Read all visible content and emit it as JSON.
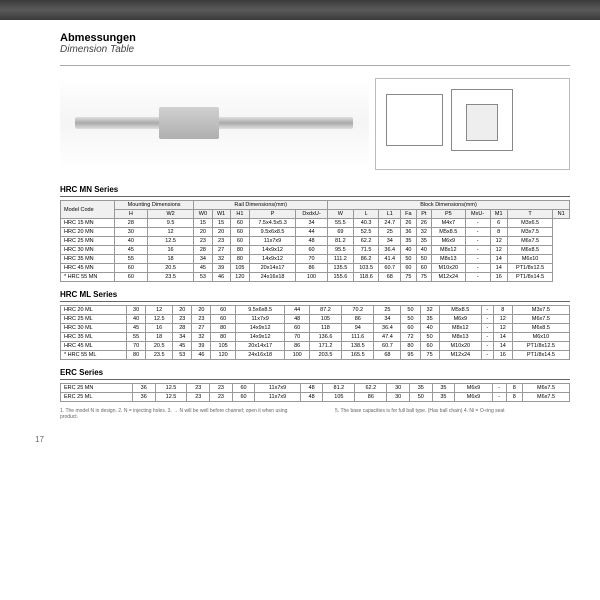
{
  "title_main": "Abmessungen",
  "title_sub": "Dimension Table",
  "series1_title": "HRC MN Series",
  "series2_title": "HRC ML Series",
  "series3_title": "ERC Series",
  "header_model": "Model Code",
  "header_mount": "Mounting Dimensions",
  "header_rail": "Rail Dimensions(mm)",
  "header_block": "Block Dimensions(mm)",
  "cols": [
    "H",
    "W2",
    "W0",
    "W1",
    "H1",
    "P",
    "DxdxU-",
    "W",
    "L",
    "L1",
    "Fa",
    "Pt",
    "P5",
    "MxU-",
    "M1",
    "T",
    "N1"
  ],
  "s1_rows": [
    [
      "HRC 15 MN",
      "28",
      "9.5",
      "15",
      "15",
      "60",
      "7.5x4.5x5.3",
      "34",
      "55.5",
      "40.3",
      "24.7",
      "26",
      "26",
      "M4x7",
      "-",
      "6",
      "M3x6.5",
      ""
    ],
    [
      "HRC 20 MN",
      "30",
      "12",
      "20",
      "20",
      "60",
      "9.5x6x8.5",
      "44",
      "69",
      "52.5",
      "25",
      "36",
      "32",
      "M5x8.5",
      "-",
      "8",
      "M3x7.5",
      ""
    ],
    [
      "HRC 25 MN",
      "40",
      "12.5",
      "23",
      "23",
      "60",
      "11x7x9",
      "48",
      "81.2",
      "62.2",
      "34",
      "35",
      "35",
      "M6x9",
      "-",
      "12",
      "M6x7.5",
      ""
    ],
    [
      "HRC 30 MN",
      "45",
      "16",
      "28",
      "27",
      "80",
      "14x9x12",
      "60",
      "95.5",
      "71.5",
      "36.4",
      "40",
      "40",
      "M8x12",
      "-",
      "12",
      "M6x8.5",
      ""
    ],
    [
      "HRC 35 MN",
      "55",
      "18",
      "34",
      "32",
      "80",
      "14x9x12",
      "70",
      "111.2",
      "86.2",
      "41.4",
      "50",
      "50",
      "M8x13",
      "-",
      "14",
      "M6x10",
      ""
    ],
    [
      "HRC 45 MN",
      "60",
      "20.5",
      "45",
      "39",
      "105",
      "20x14x17",
      "86",
      "135.5",
      "103.5",
      "60.7",
      "60",
      "60",
      "M10x20",
      "-",
      "14",
      "PT1/8x12.5",
      ""
    ],
    [
      "HRC 55 MN",
      "60",
      "23.5",
      "53",
      "46",
      "120",
      "24x16x18",
      "100",
      "155.6",
      "118.6",
      "68",
      "75",
      "75",
      "M12x24",
      "-",
      "16",
      "PT1/8x14.5",
      "*"
    ]
  ],
  "s2_rows": [
    [
      "HRC 20 ML",
      "30",
      "12",
      "20",
      "20",
      "60",
      "9.5x6x8.5",
      "44",
      "87.2",
      "70.2",
      "25",
      "50",
      "32",
      "M5x8.5",
      "-",
      "8",
      "M3x7.5",
      ""
    ],
    [
      "HRC 25 ML",
      "40",
      "12.5",
      "23",
      "23",
      "60",
      "11x7x9",
      "48",
      "105",
      "86",
      "34",
      "50",
      "35",
      "M6x9",
      "-",
      "12",
      "M6x7.5",
      ""
    ],
    [
      "HRC 30 ML",
      "45",
      "16",
      "28",
      "27",
      "80",
      "14x9x12",
      "60",
      "118",
      "94",
      "36.4",
      "60",
      "40",
      "M8x12",
      "-",
      "12",
      "M6x8.5",
      ""
    ],
    [
      "HRC 35 ML",
      "55",
      "18",
      "34",
      "32",
      "80",
      "14x9x12",
      "70",
      "136.6",
      "111.6",
      "47.4",
      "72",
      "50",
      "M8x13",
      "-",
      "14",
      "M6x10",
      ""
    ],
    [
      "HRC 45 ML",
      "70",
      "20.5",
      "45",
      "39",
      "105",
      "20x14x17",
      "86",
      "171.2",
      "138.5",
      "60.7",
      "80",
      "60",
      "M10x20",
      "-",
      "14",
      "PT1/8x12.5",
      ""
    ],
    [
      "HRC 55 ML",
      "80",
      "23.5",
      "53",
      "46",
      "120",
      "24x16x18",
      "100",
      "203.5",
      "165.5",
      "68",
      "95",
      "75",
      "M12x24",
      "-",
      "16",
      "PT1/8x14.5",
      "*"
    ]
  ],
  "s3_rows": [
    [
      "ERC 25 MN",
      "36",
      "12.5",
      "23",
      "23",
      "60",
      "11x7x9",
      "48",
      "81.2",
      "62.2",
      "30",
      "35",
      "35",
      "M6x9",
      "-",
      "8",
      "M6x7.5",
      ""
    ],
    [
      "ERC 25 ML",
      "36",
      "12.5",
      "23",
      "23",
      "60",
      "11x7x9",
      "48",
      "105",
      "86",
      "30",
      "50",
      "35",
      "M6x9",
      "-",
      "8",
      "M6x7.5",
      ""
    ]
  ],
  "notes_left": "1. The model N in design.\n2. N = injecting holes.\n3. → N will be well before channel; open it when using product.",
  "notes_right": "5. The base capacities is for full ball type. (Has ball chain)\n4. Ni = O-ring seat",
  "page_num": "17"
}
